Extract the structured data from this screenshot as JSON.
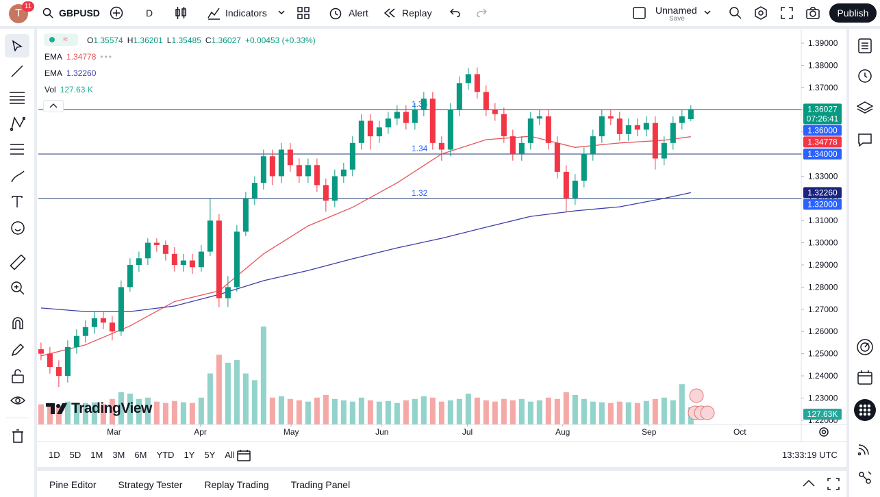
{
  "header": {
    "avatar": "T",
    "notifications": "11",
    "symbol": "GBPUSD",
    "interval": "D",
    "indicators": "Indicators",
    "alert": "Alert",
    "replay": "Replay",
    "layout_name": "Unnamed",
    "save": "Save",
    "publish": "Publish"
  },
  "legend": {
    "ohlc": [
      {
        "label": "O",
        "value": "1.35574"
      },
      {
        "label": "H",
        "value": "1.36201"
      },
      {
        "label": "L",
        "value": "1.35485"
      },
      {
        "label": "C",
        "value": "1.36027"
      }
    ],
    "change": "+0.00453 (+0.33%)"
  },
  "chart_data": {
    "type": "candlestick",
    "watermark": "TradingView",
    "xlim": [
      -0.3,
      85.4
    ],
    "ylim": [
      1.2181,
      1.3971
    ],
    "yticks": [
      {
        "value": 1.39,
        "label": "1.39000"
      },
      {
        "value": 1.38,
        "label": "1.38000"
      },
      {
        "value": 1.37,
        "label": "1.37000"
      },
      {
        "value": 1.36,
        "label": "1.36000"
      },
      {
        "value": 1.35,
        "label": "1.35000"
      },
      {
        "value": 1.34,
        "label": "1.34000"
      },
      {
        "value": 1.33,
        "label": "1.33000"
      },
      {
        "value": 1.32,
        "label": "1.32000"
      },
      {
        "value": 1.31,
        "label": "1.31000"
      },
      {
        "value": 1.3,
        "label": "1.30000"
      },
      {
        "value": 1.29,
        "label": "1.29000"
      },
      {
        "value": 1.28,
        "label": "1.28000"
      },
      {
        "value": 1.27,
        "label": "1.27000"
      },
      {
        "value": 1.26,
        "label": "1.26000"
      },
      {
        "value": 1.25,
        "label": "1.25000"
      },
      {
        "value": 1.24,
        "label": "1.24000"
      },
      {
        "value": 1.23,
        "label": "1.23000"
      },
      {
        "value": 1.22,
        "label": "1.22000"
      }
    ],
    "xticks": [
      {
        "value": 8.2,
        "label": "Mar"
      },
      {
        "value": 17.9,
        "label": "Apr"
      },
      {
        "value": 28.1,
        "label": "May"
      },
      {
        "value": 38.3,
        "label": "Jun"
      },
      {
        "value": 47.9,
        "label": "Jul"
      },
      {
        "value": 58.6,
        "label": "Aug"
      },
      {
        "value": 68.3,
        "label": "Sep"
      },
      {
        "value": 78.5,
        "label": "Oct"
      }
    ],
    "grid": false,
    "up_color": "#089981",
    "down_color": "#f23645",
    "ohlc": [
      [
        1.252,
        1.255,
        1.247,
        1.25
      ],
      [
        1.25,
        1.253,
        1.241,
        1.244
      ],
      [
        1.244,
        1.247,
        1.235,
        1.24
      ],
      [
        1.24,
        1.256,
        1.237,
        1.253
      ],
      [
        1.253,
        1.261,
        1.25,
        1.258
      ],
      [
        1.258,
        1.265,
        1.255,
        1.262
      ],
      [
        1.262,
        1.269,
        1.259,
        1.266
      ],
      [
        1.266,
        1.269,
        1.261,
        1.264
      ],
      [
        1.264,
        1.267,
        1.256,
        1.26
      ],
      [
        1.26,
        1.283,
        1.258,
        1.28
      ],
      [
        1.28,
        1.293,
        1.278,
        1.29
      ],
      [
        1.29,
        1.296,
        1.287,
        1.293
      ],
      [
        1.293,
        1.302,
        1.29,
        1.3
      ],
      [
        1.3,
        1.302,
        1.296,
        1.299
      ],
      [
        1.299,
        1.301,
        1.292,
        1.295
      ],
      [
        1.295,
        1.298,
        1.287,
        1.29
      ],
      [
        1.29,
        1.295,
        1.287,
        1.292
      ],
      [
        1.292,
        1.295,
        1.286,
        1.289
      ],
      [
        1.289,
        1.299,
        1.287,
        1.296
      ],
      [
        1.296,
        1.32,
        1.294,
        1.31
      ],
      [
        1.31,
        1.313,
        1.271,
        1.275
      ],
      [
        1.275,
        1.285,
        1.271,
        1.28
      ],
      [
        1.28,
        1.308,
        1.278,
        1.305
      ],
      [
        1.305,
        1.323,
        1.303,
        1.32
      ],
      [
        1.32,
        1.33,
        1.317,
        1.327
      ],
      [
        1.327,
        1.342,
        1.324,
        1.339
      ],
      [
        1.339,
        1.342,
        1.326,
        1.33
      ],
      [
        1.33,
        1.345,
        1.327,
        1.342
      ],
      [
        1.342,
        1.345,
        1.332,
        1.335
      ],
      [
        1.335,
        1.338,
        1.327,
        1.33
      ],
      [
        1.33,
        1.338,
        1.327,
        1.335
      ],
      [
        1.335,
        1.338,
        1.323,
        1.326
      ],
      [
        1.326,
        1.329,
        1.314,
        1.319
      ],
      [
        1.319,
        1.333,
        1.316,
        1.33
      ],
      [
        1.33,
        1.336,
        1.327,
        1.333
      ],
      [
        1.333,
        1.348,
        1.33,
        1.345
      ],
      [
        1.345,
        1.358,
        1.342,
        1.355
      ],
      [
        1.355,
        1.358,
        1.342,
        1.348
      ],
      [
        1.348,
        1.355,
        1.345,
        1.352
      ],
      [
        1.352,
        1.359,
        1.349,
        1.356
      ],
      [
        1.356,
        1.362,
        1.353,
        1.359
      ],
      [
        1.359,
        1.362,
        1.351,
        1.354
      ],
      [
        1.354,
        1.363,
        1.351,
        1.36
      ],
      [
        1.36,
        1.368,
        1.357,
        1.365
      ],
      [
        1.365,
        1.368,
        1.342,
        1.345
      ],
      [
        1.345,
        1.348,
        1.337,
        1.342
      ],
      [
        1.342,
        1.363,
        1.339,
        1.36
      ],
      [
        1.36,
        1.375,
        1.357,
        1.372
      ],
      [
        1.372,
        1.3788,
        1.369,
        1.376
      ],
      [
        1.376,
        1.379,
        1.365,
        1.368
      ],
      [
        1.368,
        1.371,
        1.357,
        1.36
      ],
      [
        1.36,
        1.363,
        1.355,
        1.358
      ],
      [
        1.358,
        1.361,
        1.345,
        1.348
      ],
      [
        1.348,
        1.351,
        1.337,
        1.34
      ],
      [
        1.34,
        1.348,
        1.337,
        1.345
      ],
      [
        1.345,
        1.359,
        1.342,
        1.356
      ],
      [
        1.356,
        1.36,
        1.353,
        1.357
      ],
      [
        1.357,
        1.36,
        1.342,
        1.345
      ],
      [
        1.345,
        1.348,
        1.329,
        1.332
      ],
      [
        1.332,
        1.335,
        1.314,
        1.32
      ],
      [
        1.32,
        1.331,
        1.317,
        1.328
      ],
      [
        1.328,
        1.343,
        1.325,
        1.34
      ],
      [
        1.34,
        1.351,
        1.337,
        1.348
      ],
      [
        1.348,
        1.36,
        1.345,
        1.357
      ],
      [
        1.357,
        1.36,
        1.353,
        1.356
      ],
      [
        1.356,
        1.359,
        1.346,
        1.349
      ],
      [
        1.349,
        1.356,
        1.346,
        1.353
      ],
      [
        1.353,
        1.356,
        1.348,
        1.351
      ],
      [
        1.351,
        1.357,
        1.348,
        1.354
      ],
      [
        1.354,
        1.357,
        1.333,
        1.338
      ],
      [
        1.338,
        1.348,
        1.335,
        1.345
      ],
      [
        1.345,
        1.357,
        1.342,
        1.354
      ],
      [
        1.354,
        1.36,
        1.351,
        1.357
      ],
      [
        1.35574,
        1.36201,
        1.35485,
        1.36027
      ]
    ],
    "series": [
      {
        "name": "EMA",
        "label": "1.34778",
        "color": "#e5545c",
        "x": [
          0,
          5,
          10,
          15,
          20,
          25,
          30,
          35,
          40,
          45,
          50,
          55,
          60,
          65,
          70,
          73
        ],
        "values": [
          1.249,
          1.254,
          1.2625,
          1.2735,
          1.2783,
          1.295,
          1.3076,
          1.316,
          1.327,
          1.34,
          1.3465,
          1.348,
          1.343,
          1.345,
          1.3462,
          1.3478
        ]
      },
      {
        "name": "EMA",
        "label": "1.32260",
        "color": "#3d3da6",
        "x": [
          0,
          5,
          10,
          15,
          20,
          25,
          30,
          35,
          40,
          45,
          50,
          55,
          60,
          65,
          70,
          73
        ],
        "values": [
          1.2706,
          1.269,
          1.269,
          1.2715,
          1.2767,
          1.2829,
          1.2875,
          1.2928,
          1.2977,
          1.302,
          1.307,
          1.3119,
          1.3144,
          1.3162,
          1.32,
          1.3226
        ]
      }
    ],
    "volume": {
      "name": "Vol",
      "label": "127.63 K",
      "up_color": "#92d3cb",
      "down_color": "#f5a9a7",
      "ylim": [
        0,
        2960
      ],
      "values": [
        150,
        160,
        140,
        170,
        155,
        160,
        165,
        150,
        190,
        240,
        230,
        190,
        200,
        170,
        160,
        175,
        165,
        160,
        200,
        380,
        520,
        460,
        480,
        380,
        330,
        730,
        200,
        210,
        190,
        180,
        170,
        200,
        220,
        190,
        180,
        170,
        200,
        180,
        170,
        175,
        160,
        180,
        190,
        210,
        200,
        170,
        180,
        190,
        230,
        200,
        180,
        170,
        190,
        180,
        190,
        170,
        180,
        200,
        190,
        240,
        220,
        190,
        170,
        165,
        160,
        170,
        165,
        160,
        175,
        190,
        200,
        180,
        300,
        127.63
      ],
      "badge": {
        "value": 127.63,
        "label": "127.63K",
        "color": "#26a69a"
      }
    },
    "levels": [
      1.36,
      1.34,
      1.32
    ],
    "level_color": "#1f3a70",
    "price_badges": [
      {
        "value": 1.36027,
        "label": "1.36027",
        "countdown": "07:26:41",
        "color": "#089981"
      },
      {
        "value": 1.36,
        "label": "1.36000",
        "color": "#2962ff"
      },
      {
        "value": 1.34778,
        "label": "1.34778",
        "color": "#f23645"
      },
      {
        "value": 1.34,
        "label": "1.34000",
        "color": "#2962ff"
      },
      {
        "value": 1.3226,
        "label": "1.32260",
        "color": "#1a237e"
      },
      {
        "value": 1.32,
        "label": "1.32000",
        "color": "#2962ff"
      }
    ]
  },
  "ranges": [
    "1D",
    "5D",
    "1M",
    "3M",
    "6M",
    "YTD",
    "1Y",
    "5Y",
    "All"
  ],
  "clock": "13:33:19 UTC",
  "tabs": [
    "Pine Editor",
    "Strategy Tester",
    "Replay Trading",
    "Trading Panel"
  ]
}
